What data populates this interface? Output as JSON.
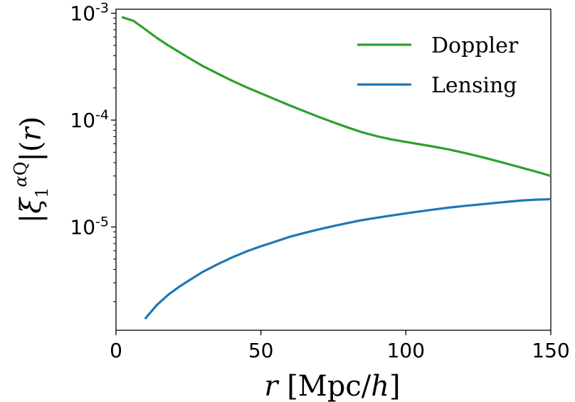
{
  "chart_data": {
    "type": "line",
    "xlabel": "r [Mpc/h]",
    "ylabel": "|ξ₁^{αQ}|(r)",
    "xlim": [
      0,
      150
    ],
    "ylim": [
      1.08e-06,
      0.00109
    ],
    "yscale": "log",
    "grid": false,
    "legend_position": "top-right",
    "x_ticks": [
      {
        "value": 0,
        "label": "0"
      },
      {
        "value": 50,
        "label": "50"
      },
      {
        "value": 100,
        "label": "100"
      },
      {
        "value": 150,
        "label": "150"
      }
    ],
    "y_ticks": [
      {
        "value": 0.001,
        "base": "10",
        "exp": "-3"
      },
      {
        "value": 0.0001,
        "base": "10",
        "exp": "-4"
      },
      {
        "value": 1e-05,
        "base": "10",
        "exp": "-5"
      }
    ],
    "series": [
      {
        "name": "Doppler",
        "color": "#2ca02c",
        "points": [
          [
            2,
            0.00092
          ],
          [
            6,
            0.00085
          ],
          [
            10,
            0.00071
          ],
          [
            14,
            0.00059
          ],
          [
            18,
            0.0005
          ],
          [
            22,
            0.00043
          ],
          [
            26,
            0.00037
          ],
          [
            30,
            0.00032
          ],
          [
            35,
            0.000273
          ],
          [
            40,
            0.000234
          ],
          [
            45,
            0.000203
          ],
          [
            50,
            0.000178
          ],
          [
            55,
            0.000156
          ],
          [
            60,
            0.000137
          ],
          [
            65,
            0.000121
          ],
          [
            70,
            0.000107
          ],
          [
            75,
            9.52e-05
          ],
          [
            80,
            8.52e-05
          ],
          [
            85,
            7.68e-05
          ],
          [
            90,
            7.07e-05
          ],
          [
            95,
            6.59e-05
          ],
          [
            100,
            6.25e-05
          ],
          [
            105,
            5.93e-05
          ],
          [
            110,
            5.62e-05
          ],
          [
            115,
            5.3e-05
          ],
          [
            120,
            4.95e-05
          ],
          [
            125,
            4.59e-05
          ],
          [
            130,
            4.24e-05
          ],
          [
            135,
            3.9e-05
          ],
          [
            140,
            3.58e-05
          ],
          [
            145,
            3.29e-05
          ],
          [
            150,
            3e-05
          ]
        ]
      },
      {
        "name": "Lensing",
        "color": "#1f77b4",
        "points": [
          [
            10,
            1.38e-06
          ],
          [
            14,
            1.85e-06
          ],
          [
            18,
            2.32e-06
          ],
          [
            22,
            2.78e-06
          ],
          [
            26,
            3.26e-06
          ],
          [
            30,
            3.81e-06
          ],
          [
            35,
            4.47e-06
          ],
          [
            40,
            5.18e-06
          ],
          [
            45,
            5.9e-06
          ],
          [
            50,
            6.6e-06
          ],
          [
            55,
            7.3e-06
          ],
          [
            60,
            8.1e-06
          ],
          [
            65,
            8.8e-06
          ],
          [
            70,
            9.5e-06
          ],
          [
            75,
            1.02e-05
          ],
          [
            80,
            1.09e-05
          ],
          [
            85,
            1.16e-05
          ],
          [
            90,
            1.22e-05
          ],
          [
            95,
            1.28e-05
          ],
          [
            100,
            1.34e-05
          ],
          [
            105,
            1.4e-05
          ],
          [
            110,
            1.46e-05
          ],
          [
            115,
            1.52e-05
          ],
          [
            120,
            1.57e-05
          ],
          [
            125,
            1.62e-05
          ],
          [
            130,
            1.67e-05
          ],
          [
            135,
            1.72e-05
          ],
          [
            140,
            1.77e-05
          ],
          [
            145,
            1.8e-05
          ],
          [
            150,
            1.82e-05
          ]
        ]
      }
    ]
  }
}
